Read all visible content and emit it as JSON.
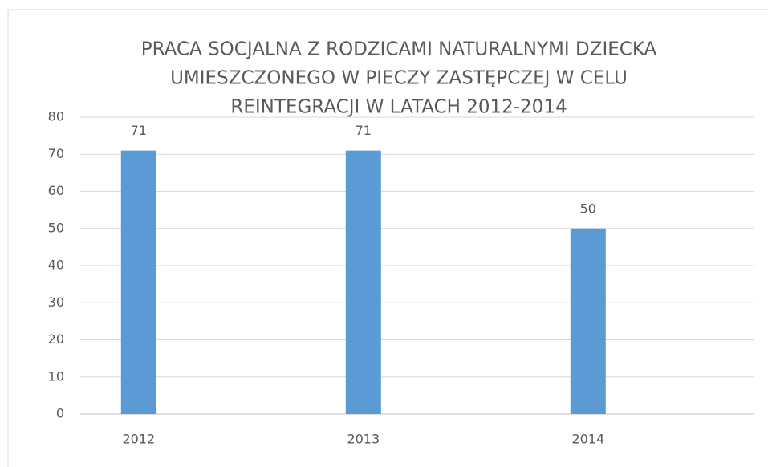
{
  "chart_data": {
    "type": "bar",
    "title": [
      "PRACA SOCJALNA Z RODZICAMI NATURALNYMI DZIECKA",
      "UMIESZCZONEGO W PIECZY ZASTĘPCZEJ W CELU",
      "REINTEGRACJI W LATACH 2012-2014"
    ],
    "categories": [
      "2012",
      "2013",
      "2014"
    ],
    "values": [
      71,
      71,
      50
    ],
    "color": "#5b9bd5",
    "ylim": [
      0,
      80
    ],
    "yticks": [
      0,
      10,
      20,
      30,
      40,
      50,
      60,
      70,
      80
    ],
    "grid": true,
    "data_labels": true
  }
}
